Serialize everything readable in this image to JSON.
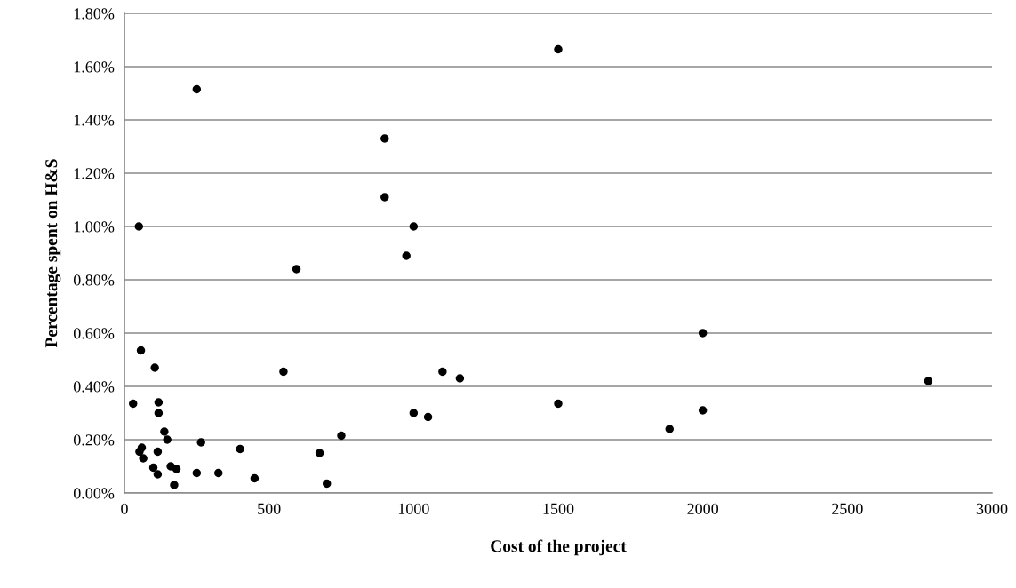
{
  "chart_data": {
    "type": "scatter",
    "xlabel": "Cost of the project",
    "ylabel": "Percentage spent on H&S",
    "x": [
      30,
      50,
      52,
      57,
      60,
      65,
      100,
      105,
      115,
      115,
      118,
      118,
      138,
      148,
      160,
      172,
      180,
      250,
      250,
      265,
      325,
      400,
      450,
      550,
      595,
      675,
      700,
      750,
      900,
      900,
      975,
      1000,
      1000,
      1050,
      1100,
      1160,
      1500,
      1500,
      1885,
      2000,
      2000,
      2780
    ],
    "series": [
      {
        "color": "#000000",
        "values": [
          0.335,
          1.0,
          0.155,
          0.535,
          0.17,
          0.13,
          0.095,
          0.47,
          0.07,
          0.155,
          0.34,
          0.3,
          0.23,
          0.2,
          0.1,
          0.03,
          0.09,
          1.515,
          0.075,
          0.19,
          0.075,
          0.165,
          0.055,
          0.455,
          0.84,
          0.15,
          0.035,
          0.215,
          1.33,
          1.11,
          0.89,
          1.0,
          0.3,
          0.285,
          0.455,
          0.43,
          1.665,
          0.335,
          0.24,
          0.6,
          0.31,
          0.42
        ]
      }
    ],
    "xlim": [
      0,
      3000
    ],
    "xticks": [
      0,
      500,
      1000,
      1500,
      2000,
      2500,
      3000
    ],
    "ylim": [
      0,
      1.8
    ],
    "yticks": [
      {
        "value": 0,
        "label": "0.00%"
      },
      {
        "value": 0.2,
        "label": "0.20%"
      },
      {
        "value": 0.4,
        "label": "0.40%"
      },
      {
        "value": 0.6,
        "label": "0.60%"
      },
      {
        "value": 0.8,
        "label": "0.80%"
      },
      {
        "value": 1.0,
        "label": "1.00%"
      },
      {
        "value": 1.2,
        "label": "1.20%"
      },
      {
        "value": 1.4,
        "label": "1.40%"
      },
      {
        "value": 1.6,
        "label": "1.60%"
      },
      {
        "value": 1.8,
        "label": "1.80%"
      }
    ],
    "grid": "y",
    "marker": "circle",
    "legend": false
  }
}
